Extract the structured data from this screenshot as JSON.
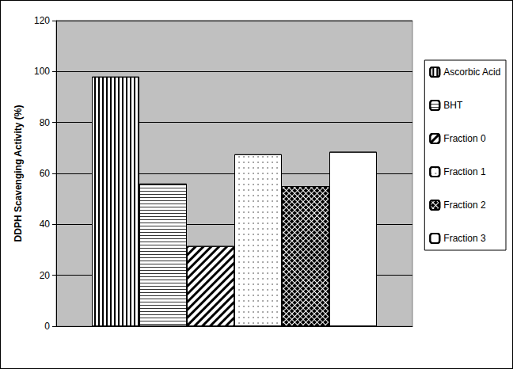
{
  "chart_data": {
    "type": "bar",
    "y_label": "DDPH Scavenging Activity (%)",
    "categories": [
      null
    ],
    "series": [
      {
        "name": "Ascorbic Acid",
        "color": "#ffffff",
        "values": [
          98
        ]
      },
      {
        "name": "BHT",
        "color": "#ffffff",
        "values": [
          56
        ]
      },
      {
        "name": "Fraction 0",
        "color": "#ffffff",
        "values": [
          31.5
        ]
      },
      {
        "name": "Fraction 1",
        "color": "#ffffff",
        "values": [
          67.5
        ]
      },
      {
        "name": "Fraction 2",
        "color": "#ffffff",
        "values": [
          55
        ]
      },
      {
        "name": "Fraction 3",
        "color": "#ffffff",
        "values": [
          68.5
        ]
      }
    ],
    "ylim": [
      0,
      120
    ],
    "yticks": [
      0,
      20,
      40,
      60,
      80,
      100,
      120
    ],
    "grid": true,
    "legend": "right"
  }
}
